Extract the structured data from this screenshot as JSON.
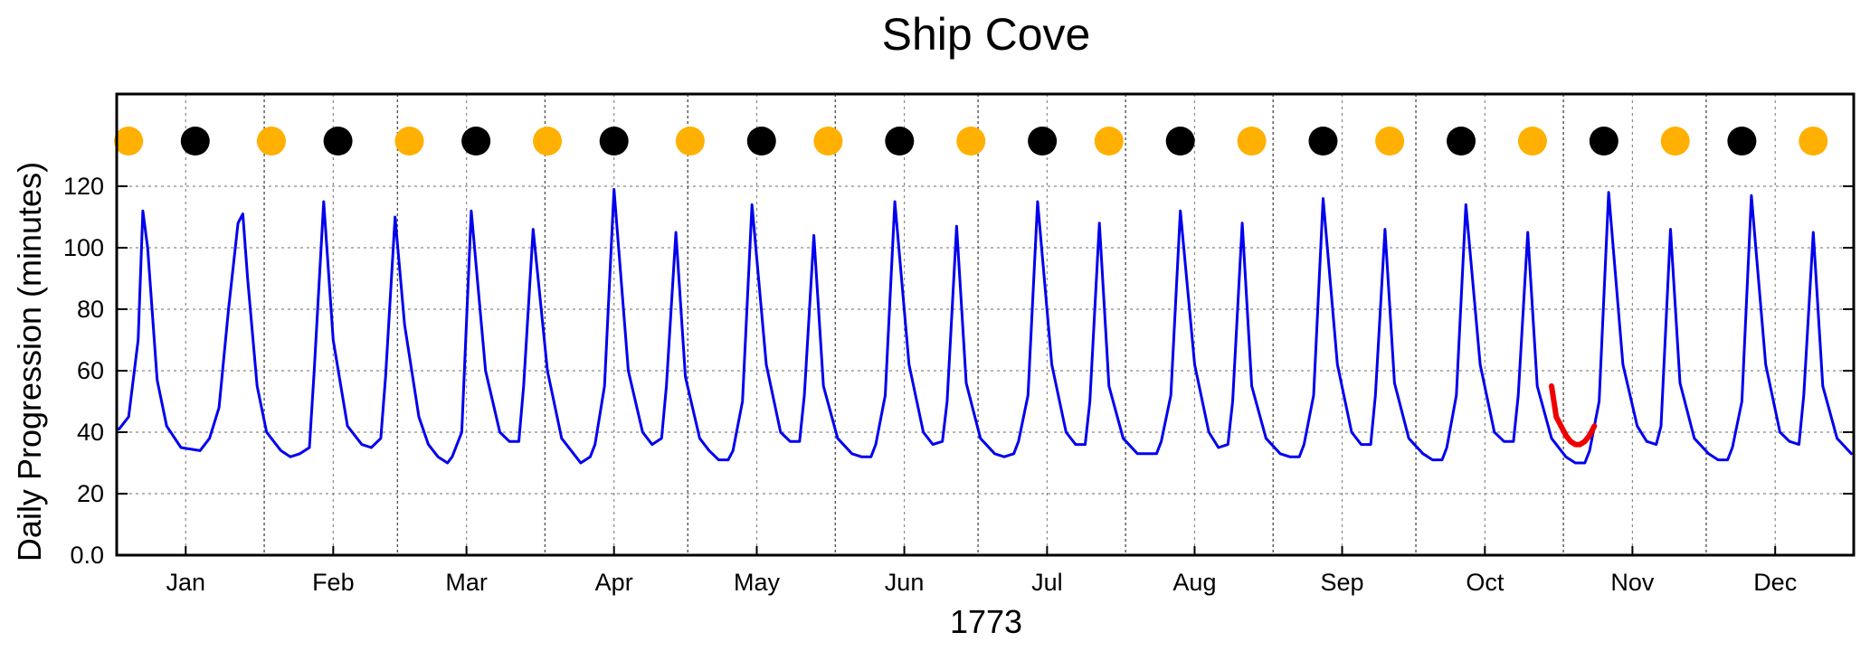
{
  "chart_data": {
    "type": "line",
    "title": "Ship Cove",
    "xlabel": "1773",
    "ylabel": "Daily Progression (minutes)",
    "ylim": [
      0,
      150
    ],
    "yticks": [
      0,
      20,
      40,
      60,
      80,
      100,
      120
    ],
    "ytick_labels": [
      "0.0",
      "20",
      "40",
      "60",
      "80",
      "100",
      "120"
    ],
    "xlim": [
      "1773-01-01",
      "1773-12-31"
    ],
    "x_tick_labels": [
      "Jan",
      "Feb",
      "Mar",
      "Apr",
      "May",
      "Jun",
      "Jul",
      "Aug",
      "Sep",
      "Oct",
      "Nov",
      "Dec"
    ],
    "grid": true,
    "series": [
      {
        "color": "#0000ee",
        "x": [
          "1773-01-01",
          "1773-01-03",
          "1773-01-05",
          "1773-01-06",
          "1773-01-07",
          "1773-01-09",
          "1773-01-11",
          "1773-01-14",
          "1773-01-18",
          "1773-01-20",
          "1773-01-22",
          "1773-01-24",
          "1773-01-26",
          "1773-01-27",
          "1773-01-28",
          "1773-01-30",
          "1773-02-01",
          "1773-02-04",
          "1773-02-06",
          "1773-02-08",
          "1773-02-10",
          "1773-02-11",
          "1773-02-13",
          "1773-02-15",
          "1773-02-18",
          "1773-02-21",
          "1773-02-23",
          "1773-02-25",
          "1773-02-26",
          "1773-02-28",
          "1773-03-02",
          "1773-03-05",
          "1773-03-07",
          "1773-03-09",
          "1773-03-11",
          "1773-03-12",
          "1773-03-14",
          "1773-03-16",
          "1773-03-19",
          "1773-03-22",
          "1773-03-24",
          "1773-03-26",
          "1773-03-27",
          "1773-03-29",
          "1773-04-01",
          "1773-04-04",
          "1773-04-06",
          "1773-04-08",
          "1773-04-10",
          "1773-04-11",
          "1773-04-13",
          "1773-04-15",
          "1773-04-18",
          "1773-04-21",
          "1773-04-23",
          "1773-04-25",
          "1773-04-26",
          "1773-04-28",
          "1773-04-30",
          "1773-05-03",
          "1773-05-05",
          "1773-05-07",
          "1773-05-09",
          "1773-05-10",
          "1773-05-12",
          "1773-05-14",
          "1773-05-17",
          "1773-05-20",
          "1773-05-22",
          "1773-05-24",
          "1773-05-25",
          "1773-05-27",
          "1773-05-29",
          "1773-06-01",
          "1773-06-04",
          "1773-06-06",
          "1773-06-08",
          "1773-06-09",
          "1773-06-11",
          "1773-06-13",
          "1773-06-16",
          "1773-06-19",
          "1773-06-21",
          "1773-06-23",
          "1773-06-24",
          "1773-06-26",
          "1773-06-28",
          "1773-07-01",
          "1773-07-04",
          "1773-07-06",
          "1773-07-08",
          "1773-07-09",
          "1773-07-11",
          "1773-07-13",
          "1773-07-16",
          "1773-07-19",
          "1773-07-21",
          "1773-07-23",
          "1773-07-24",
          "1773-07-26",
          "1773-07-28",
          "1773-07-31",
          "1773-08-03",
          "1773-08-05",
          "1773-08-07",
          "1773-08-08",
          "1773-08-10",
          "1773-08-12",
          "1773-08-15",
          "1773-08-18",
          "1773-08-20",
          "1773-08-22",
          "1773-08-23",
          "1773-08-25",
          "1773-08-27",
          "1773-08-30",
          "1773-09-02",
          "1773-09-04",
          "1773-09-06",
          "1773-09-07",
          "1773-09-09",
          "1773-09-11",
          "1773-09-14",
          "1773-09-17",
          "1773-09-19",
          "1773-09-21",
          "1773-09-22",
          "1773-09-24",
          "1773-09-26",
          "1773-09-29",
          "1773-10-02",
          "1773-10-04",
          "1773-10-06",
          "1773-10-07",
          "1773-10-09",
          "1773-10-11",
          "1773-10-14",
          "1773-10-17",
          "1773-10-19",
          "1773-10-21",
          "1773-10-22",
          "1773-10-24",
          "1773-10-26",
          "1773-10-29",
          "1773-11-01",
          "1773-11-03",
          "1773-11-05",
          "1773-11-06",
          "1773-11-08",
          "1773-11-10",
          "1773-11-13",
          "1773-11-16",
          "1773-11-18",
          "1773-11-20",
          "1773-11-21",
          "1773-11-23",
          "1773-11-25",
          "1773-11-28",
          "1773-12-01",
          "1773-12-03",
          "1773-12-05",
          "1773-12-06",
          "1773-12-08",
          "1773-12-10",
          "1773-12-13",
          "1773-12-16",
          "1773-12-18",
          "1773-12-20",
          "1773-12-21",
          "1773-12-23",
          "1773-12-25",
          "1773-12-28",
          "1773-12-31"
        ],
        "y": [
          41,
          45,
          70,
          112,
          100,
          57,
          42,
          35,
          34,
          38,
          48,
          80,
          108,
          111,
          90,
          55,
          40,
          34,
          32,
          33,
          35,
          60,
          115,
          70,
          42,
          36,
          35,
          38,
          58,
          110,
          75,
          45,
          36,
          32,
          30,
          32,
          40,
          112,
          60,
          40,
          37,
          37,
          55,
          106,
          60,
          38,
          34,
          30,
          32,
          36,
          55,
          119,
          60,
          40,
          36,
          38,
          55,
          105,
          58,
          38,
          34,
          31,
          31,
          34,
          50,
          114,
          62,
          40,
          37,
          37,
          52,
          104,
          55,
          38,
          33,
          32,
          32,
          36,
          52,
          115,
          62,
          40,
          36,
          37,
          50,
          107,
          56,
          38,
          33,
          32,
          33,
          37,
          52,
          115,
          62,
          40,
          36,
          36,
          50,
          108,
          55,
          38,
          33,
          33,
          33,
          37,
          52,
          112,
          62,
          40,
          35,
          36,
          50,
          108,
          55,
          38,
          33,
          32,
          32,
          36,
          52,
          116,
          62,
          40,
          36,
          36,
          52,
          106,
          56,
          38,
          33,
          31,
          31,
          35,
          52,
          114,
          62,
          40,
          37,
          37,
          52,
          105,
          55,
          38,
          32,
          30,
          30,
          34,
          50,
          118,
          62,
          42,
          37,
          36,
          42,
          106,
          56,
          38,
          33,
          31,
          31,
          35,
          50,
          117,
          62,
          40,
          37,
          36,
          52,
          105,
          55,
          38,
          33
        ]
      },
      {
        "color": "#ee0000",
        "x": [
          "1773-10-29",
          "1773-10-30",
          "1773-10-31",
          "1773-11-01",
          "1773-11-02",
          "1773-11-03",
          "1773-11-04",
          "1773-11-05",
          "1773-11-06",
          "1773-11-07"
        ],
        "y": [
          55,
          45,
          42,
          39,
          37,
          36,
          36,
          37,
          39,
          42
        ]
      }
    ],
    "moon_phases": {
      "full_moon_color": "#ffb000",
      "new_moon_color": "#000000",
      "events": [
        {
          "phase": "full",
          "date": "1773-01-03"
        },
        {
          "phase": "new",
          "date": "1773-01-17"
        },
        {
          "phase": "full",
          "date": "1773-02-02"
        },
        {
          "phase": "new",
          "date": "1773-02-16"
        },
        {
          "phase": "full",
          "date": "1773-03-03"
        },
        {
          "phase": "new",
          "date": "1773-03-17"
        },
        {
          "phase": "full",
          "date": "1773-04-01"
        },
        {
          "phase": "new",
          "date": "1773-04-15"
        },
        {
          "phase": "full",
          "date": "1773-05-01"
        },
        {
          "phase": "new",
          "date": "1773-05-16"
        },
        {
          "phase": "full",
          "date": "1773-05-30"
        },
        {
          "phase": "new",
          "date": "1773-06-14"
        },
        {
          "phase": "full",
          "date": "1773-06-29"
        },
        {
          "phase": "new",
          "date": "1773-07-14"
        },
        {
          "phase": "full",
          "date": "1773-07-28"
        },
        {
          "phase": "new",
          "date": "1773-08-12"
        },
        {
          "phase": "full",
          "date": "1773-08-27"
        },
        {
          "phase": "new",
          "date": "1773-09-11"
        },
        {
          "phase": "full",
          "date": "1773-09-25"
        },
        {
          "phase": "new",
          "date": "1773-10-10"
        },
        {
          "phase": "full",
          "date": "1773-10-25"
        },
        {
          "phase": "new",
          "date": "1773-11-09"
        },
        {
          "phase": "full",
          "date": "1773-11-24"
        },
        {
          "phase": "new",
          "date": "1773-12-08"
        },
        {
          "phase": "full",
          "date": "1773-12-23"
        }
      ]
    }
  }
}
